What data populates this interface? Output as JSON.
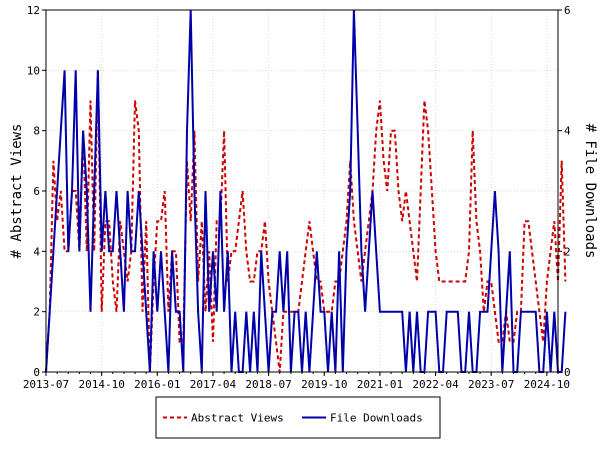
{
  "chart_data": {
    "type": "line",
    "ylabel_left": "# Abstract Views",
    "ylabel_right": "# File Downloads",
    "xlabel": "",
    "x_tick_labels": [
      "2013-07",
      "2014-10",
      "2016-01",
      "2017-04",
      "2018-07",
      "2019-10",
      "2021-01",
      "2022-04",
      "2023-07",
      "2024-10"
    ],
    "ylim_left": [
      0,
      12
    ],
    "ylim_right": [
      0,
      6
    ],
    "yticks_left": [
      0,
      2,
      4,
      6,
      8,
      10,
      12
    ],
    "yticks_right": [
      0,
      2,
      4,
      6
    ],
    "x_range_months": [
      0,
      138
    ],
    "grid": true,
    "legend_position": "bottom",
    "series": [
      {
        "name": "Abstract Views",
        "axis": "left",
        "color": "#cc0000",
        "dash": "dashed",
        "values": [
          0,
          2,
          7,
          5,
          6,
          4,
          4,
          6,
          6,
          4,
          8,
          4,
          9,
          4,
          10,
          2,
          5,
          5,
          3,
          2,
          5,
          4,
          3,
          4,
          9,
          8,
          2,
          5,
          0,
          3,
          5,
          5,
          6,
          2,
          4,
          4,
          1,
          1,
          7,
          5,
          8,
          3,
          5,
          2,
          4,
          1,
          5,
          5,
          8,
          3,
          4,
          4,
          5,
          6,
          4,
          3,
          3,
          4,
          4,
          5,
          3,
          2,
          1,
          0,
          2,
          2,
          2,
          2,
          2,
          3,
          4,
          5,
          4,
          3,
          3,
          2,
          2,
          2,
          3,
          3,
          4,
          5,
          7,
          5,
          4,
          3,
          4,
          5,
          6,
          8,
          9,
          7,
          6,
          8,
          8,
          6,
          5,
          6,
          5,
          4,
          3,
          6,
          9,
          8,
          6,
          4,
          3,
          3,
          3,
          3,
          3,
          3,
          3,
          3,
          4,
          8,
          5,
          4,
          2,
          3,
          3,
          2,
          1,
          1,
          2,
          1,
          1,
          2,
          2,
          5,
          5,
          4,
          3,
          2,
          1,
          3,
          4,
          5,
          3,
          7,
          3
        ]
      },
      {
        "name": "File Downloads",
        "axis": "right",
        "color": "#0000aa",
        "dash": "solid",
        "values": [
          0,
          1,
          2,
          3,
          4,
          5,
          2,
          3,
          5,
          2,
          4,
          3,
          1,
          3,
          5,
          2,
          3,
          2,
          2,
          3,
          2,
          1,
          3,
          2,
          2,
          3,
          2,
          1,
          0,
          2,
          1,
          2,
          1,
          0,
          2,
          1,
          1,
          0,
          4,
          6,
          3,
          1,
          0,
          3,
          1,
          2,
          1,
          3,
          1,
          2,
          0,
          1,
          0,
          0,
          1,
          0,
          1,
          0,
          2,
          1,
          0,
          1,
          1,
          2,
          1,
          2,
          0,
          1,
          1,
          0,
          1,
          0,
          1,
          2,
          1,
          1,
          0,
          1,
          0,
          2,
          0,
          2,
          3,
          6,
          4,
          2,
          1,
          2,
          3,
          2,
          1,
          1,
          1,
          1,
          1,
          1,
          1,
          0,
          1,
          0,
          1,
          0,
          0,
          1,
          1,
          1,
          0,
          0,
          1,
          1,
          1,
          1,
          0,
          0,
          1,
          0,
          0,
          1,
          1,
          1,
          2,
          3,
          2,
          0,
          1,
          2,
          0,
          0,
          1,
          1,
          1,
          1,
          1,
          0,
          0,
          1,
          0,
          1,
          0,
          0,
          1
        ]
      }
    ]
  }
}
